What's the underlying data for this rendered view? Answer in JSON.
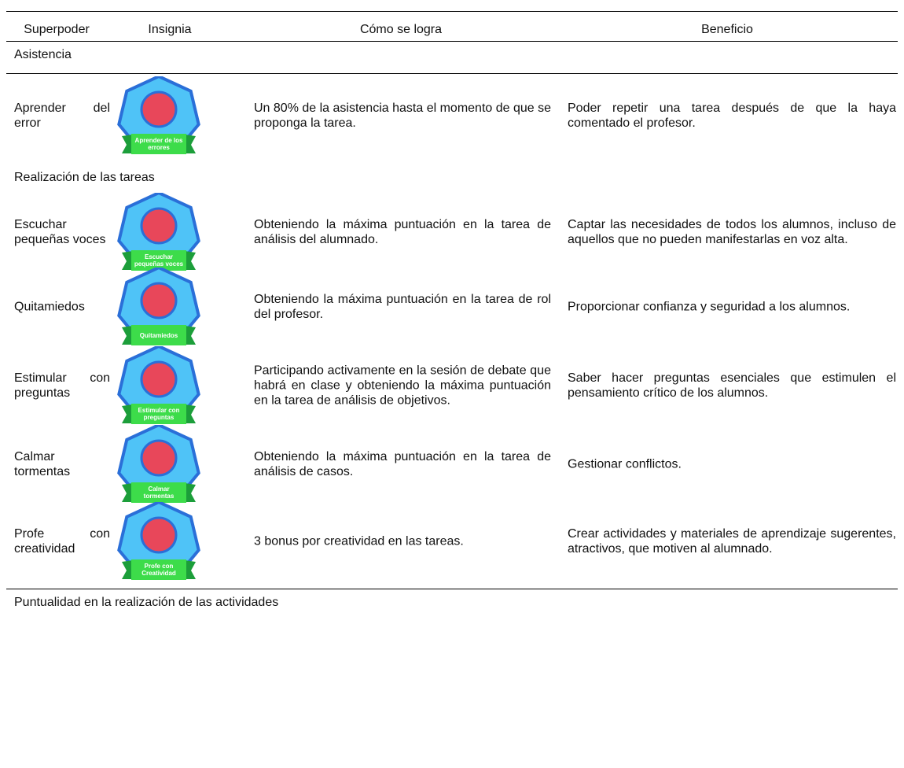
{
  "table": {
    "headers": [
      "Superpoder",
      "Insignia",
      "Cómo se logra",
      "Beneficio"
    ],
    "sections": [
      {
        "title": "Asistencia",
        "rows": [
          {
            "superpoder": "Aprender del error",
            "insignia": "Aprender de los errores",
            "como": "Un 80% de la asistencia hasta el momento de que se proponga la tarea.",
            "beneficio": "Poder repetir una tarea después de que la haya comentado el profesor."
          }
        ]
      },
      {
        "title": "Realización de las tareas",
        "rows": [
          {
            "superpoder": "Escuchar pequeñas voces",
            "insignia": "Escuchar pequeñas voces",
            "como": "Obteniendo la máxima puntuación en la tarea de análisis del alumnado.",
            "beneficio": "Captar las necesidades de todos los alumnos, incluso de aquellos que no pueden manifestarlas en voz alta."
          },
          {
            "superpoder": "Quitamiedos",
            "insignia": "Quitamiedos",
            "como": "Obteniendo la máxima puntuación en la tarea de rol del profesor.",
            "beneficio": "Proporcionar confianza y seguridad a los alumnos."
          },
          {
            "superpoder": "Estimular con preguntas",
            "insignia": "Estimular con preguntas",
            "como": "Participando activamente en la sesión de debate que habrá en clase y obteniendo la máxima puntuación en la tarea de análisis de objetivos.",
            "beneficio": "Saber hacer preguntas esenciales que estimulen el pensamiento crítico de los alumnos."
          },
          {
            "superpoder": "Calmar tormentas",
            "insignia": "Calmar tormentas",
            "como": "Obteniendo la máxima puntuación en la tarea de análisis de casos.",
            "beneficio": "Gestionar conflictos."
          },
          {
            "superpoder": "Profe con creatividad",
            "insignia": "Profe con Creatividad",
            "como": "3 bonus por creatividad en las tareas.",
            "beneficio": "Crear actividades y materiales de aprendizaje sugerentes, atractivos, que motiven al alumnado."
          }
        ]
      },
      {
        "title": "Puntualidad en la realización de las actividades",
        "rows": []
      }
    ]
  }
}
